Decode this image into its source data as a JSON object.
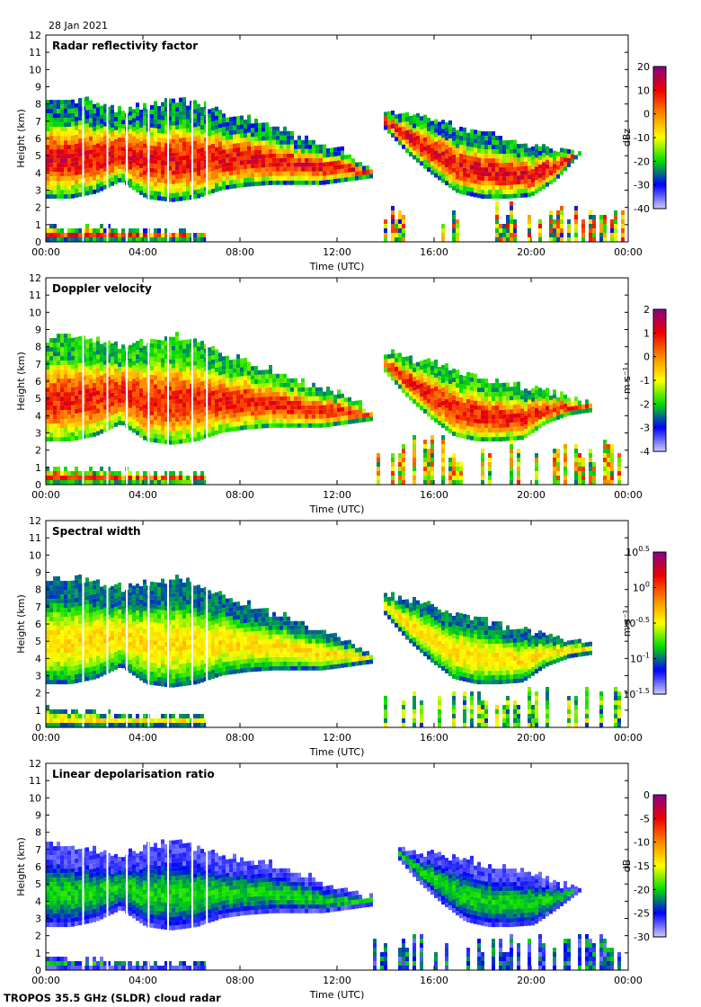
{
  "header": {
    "date": "28 Jan 2021"
  },
  "footer": {
    "instrument": "TROPOS 35.5 GHz (SLDR) cloud radar"
  },
  "chart_data": [
    {
      "type": "heatmap",
      "title": "Radar reflectivity factor",
      "xlabel": "Time (UTC)",
      "ylabel": "Height (km)",
      "x_ticks": [
        "00:00",
        "04:00",
        "08:00",
        "12:00",
        "16:00",
        "20:00",
        "00:00"
      ],
      "xlim": [
        0,
        24
      ],
      "y_ticks": [
        "0",
        "1",
        "2",
        "3",
        "4",
        "5",
        "6",
        "7",
        "8",
        "9",
        "10",
        "11",
        "12"
      ],
      "ylim": [
        0,
        12
      ],
      "colorbar": {
        "label": "dBz",
        "range": [
          -40,
          20
        ],
        "ticks": [
          "20",
          "10",
          "0",
          "-10",
          "-20",
          "-30",
          "-40"
        ],
        "colors": [
          "#ccccff",
          "#0000ff",
          "#00dd00",
          "#ffff00",
          "#ff8800",
          "#ee0000",
          "#880088"
        ]
      },
      "cloud": {
        "segments": [
          {
            "t": [
              0,
              13.5
            ],
            "base": [
              2.5,
              2.5,
              2.8,
              3.5,
              2.5,
              2.3,
              2.5,
              3.0,
              3.2,
              3.3,
              3.3,
              3.3,
              3.5,
              3.7
            ],
            "top": [
              8.0,
              8.2,
              8.0,
              7.5,
              7.8,
              8.2,
              8.0,
              7.5,
              7.0,
              6.5,
              6.0,
              5.5,
              5.0,
              4.0
            ]
          },
          {
            "t": [
              14,
              22
            ],
            "base": [
              6.5,
              5.0,
              3.8,
              2.8,
              2.5,
              2.5,
              2.6,
              3.5,
              5.0
            ],
            "top": [
              7.5,
              7.3,
              7.0,
              6.5,
              6.2,
              5.8,
              5.5,
              5.3,
              5.0
            ]
          },
          {
            "t": [
              0,
              6.6
            ],
            "base": [
              0.0,
              0.0,
              0.0,
              0.0,
              0.0,
              0.0,
              0.0
            ],
            "top": [
              0.8,
              0.6,
              0.7,
              0.6,
              0.5,
              0.5,
              0.5
            ]
          }
        ],
        "low_cells": {
          "t": [
            14,
            24
          ],
          "top": [
            2.5,
            2.0
          ]
        }
      },
      "value_scale": "log",
      "typical_range": [
        -30,
        10
      ]
    },
    {
      "type": "heatmap",
      "title": "Doppler velocity",
      "xlabel": "Time (UTC)",
      "ylabel": "Height (km)",
      "x_ticks": [
        "00:00",
        "04:00",
        "08:00",
        "12:00",
        "16:00",
        "20:00",
        "00:00"
      ],
      "xlim": [
        0,
        24
      ],
      "y_ticks": [
        "0",
        "1",
        "2",
        "3",
        "4",
        "5",
        "6",
        "7",
        "8",
        "9",
        "10",
        "11",
        "12"
      ],
      "ylim": [
        0,
        12
      ],
      "colorbar": {
        "label": "m s⁻¹",
        "range": [
          -4,
          2
        ],
        "ticks": [
          "2",
          "1",
          "0",
          "-1",
          "-2",
          "-3",
          "-4"
        ],
        "colors": [
          "#ccccff",
          "#0000ff",
          "#00dd00",
          "#ffff00",
          "#ff8800",
          "#ee0000",
          "#880088"
        ]
      },
      "cloud": {
        "segments": [
          {
            "t": [
              0,
              13.5
            ],
            "base": [
              2.5,
              2.5,
              2.8,
              3.5,
              2.5,
              2.3,
              2.5,
              3.0,
              3.2,
              3.3,
              3.3,
              3.3,
              3.5,
              3.7
            ],
            "top": [
              8.4,
              8.5,
              8.3,
              8.0,
              8.2,
              8.5,
              8.3,
              7.5,
              7.0,
              6.5,
              6.0,
              5.5,
              5.0,
              4.0
            ]
          },
          {
            "t": [
              14,
              22.5
            ],
            "base": [
              6.5,
              5.0,
              3.8,
              2.8,
              2.5,
              2.5,
              2.6,
              3.5,
              4.0,
              4.2
            ],
            "top": [
              7.6,
              7.3,
              7.0,
              6.5,
              6.2,
              5.8,
              5.5,
              5.3,
              5.0,
              4.6
            ]
          },
          {
            "t": [
              0,
              6.6
            ],
            "base": [
              0.0,
              0.0,
              0.0,
              0.0,
              0.0,
              0.0,
              0.0
            ],
            "top": [
              1.0,
              0.7,
              0.7,
              0.6,
              0.5,
              0.5,
              0.5
            ]
          }
        ],
        "low_cells": {
          "t": [
            13.5,
            24
          ],
          "top": [
            3.0,
            2.5
          ]
        }
      },
      "value_scale": "linear",
      "typical_range": [
        -2.5,
        0.8
      ]
    },
    {
      "type": "heatmap",
      "title": "Spectral width",
      "xlabel": "Time (UTC)",
      "ylabel": "Height (km)",
      "x_ticks": [
        "00:00",
        "04:00",
        "08:00",
        "12:00",
        "16:00",
        "20:00",
        "00:00"
      ],
      "xlim": [
        0,
        24
      ],
      "y_ticks": [
        "0",
        "1",
        "2",
        "3",
        "4",
        "5",
        "6",
        "7",
        "8",
        "9",
        "10",
        "11",
        "12"
      ],
      "ylim": [
        0,
        12
      ],
      "colorbar": {
        "label": "m s⁻¹",
        "range": [
          -1.5,
          0.5
        ],
        "ticks": [
          "10^0.5",
          "10^0",
          "10^-0.5",
          "10^-1",
          "10^-1.5"
        ],
        "colors": [
          "#ccccff",
          "#0000ff",
          "#00dd00",
          "#ffff00",
          "#ff8800",
          "#ee0000",
          "#880088"
        ]
      },
      "cloud": {
        "segments": [
          {
            "t": [
              0,
              13.5
            ],
            "base": [
              2.5,
              2.5,
              2.8,
              3.5,
              2.5,
              2.3,
              2.5,
              3.0,
              3.2,
              3.3,
              3.3,
              3.3,
              3.5,
              3.7
            ],
            "top": [
              8.5,
              8.6,
              8.3,
              8.0,
              8.2,
              8.5,
              8.3,
              7.5,
              7.0,
              6.5,
              6.0,
              5.5,
              5.0,
              4.0
            ]
          },
          {
            "t": [
              14,
              22.5
            ],
            "base": [
              6.5,
              5.0,
              3.8,
              2.8,
              2.5,
              2.5,
              2.6,
              3.5,
              4.0,
              4.2
            ],
            "top": [
              7.6,
              7.3,
              7.0,
              6.5,
              6.2,
              5.8,
              5.5,
              5.3,
              5.0,
              4.6
            ]
          },
          {
            "t": [
              0,
              6.6
            ],
            "base": [
              0.0,
              0.0,
              0.0,
              0.0,
              0.0,
              0.0,
              0.0
            ],
            "top": [
              1.2,
              0.8,
              0.8,
              0.6,
              0.5,
              0.5,
              0.5
            ]
          }
        ],
        "low_cells": {
          "t": [
            13.5,
            24
          ],
          "top": [
            2.5,
            2.3
          ]
        }
      },
      "value_scale": "log",
      "typical_range": [
        -1.1,
        -0.4
      ]
    },
    {
      "type": "heatmap",
      "title": "Linear depolarisation ratio",
      "xlabel": "Time (UTC)",
      "ylabel": "Height (km)",
      "x_ticks": [
        "00:00",
        "04:00",
        "08:00",
        "12:00",
        "16:00",
        "20:00",
        "00:00"
      ],
      "xlim": [
        0,
        24
      ],
      "y_ticks": [
        "0",
        "1",
        "2",
        "3",
        "4",
        "5",
        "6",
        "7",
        "8",
        "9",
        "10",
        "11",
        "12"
      ],
      "ylim": [
        0,
        12
      ],
      "colorbar": {
        "label": "dB",
        "range": [
          -30,
          0
        ],
        "ticks": [
          "0",
          "-5",
          "-10",
          "-15",
          "-20",
          "-25",
          "-30"
        ],
        "colors": [
          "#ccccff",
          "#0000ff",
          "#00dd00",
          "#ffff00",
          "#ff8800",
          "#ee0000",
          "#880088"
        ]
      },
      "cloud": {
        "segments": [
          {
            "t": [
              0,
              13.5
            ],
            "base": [
              2.5,
              2.5,
              2.8,
              3.5,
              2.5,
              2.3,
              2.5,
              3.0,
              3.2,
              3.3,
              3.3,
              3.3,
              3.5,
              3.7
            ],
            "top": [
              7.3,
              7.0,
              6.8,
              6.5,
              7.0,
              7.5,
              7.0,
              6.5,
              6.2,
              6.0,
              5.5,
              5.0,
              4.5,
              4.0
            ]
          },
          {
            "t": [
              14.5,
              22
            ],
            "base": [
              6.5,
              5.0,
              3.8,
              2.8,
              2.5,
              2.5,
              2.6,
              3.5,
              4.5
            ],
            "top": [
              7.0,
              6.8,
              6.6,
              6.3,
              6.0,
              5.8,
              5.5,
              5.0,
              4.5
            ]
          },
          {
            "t": [
              0,
              6.6
            ],
            "base": [
              0.0,
              0.0,
              0.0,
              0.0,
              0.0,
              0.0,
              0.0
            ],
            "top": [
              0.8,
              0.4,
              0.4,
              0.4,
              0.3,
              0.3,
              0.3
            ]
          }
        ],
        "low_cells": {
          "t": [
            13.5,
            24
          ],
          "top": [
            2.3,
            2.0
          ]
        }
      },
      "value_scale": "linear",
      "typical_range": [
        -28,
        -20
      ]
    }
  ]
}
